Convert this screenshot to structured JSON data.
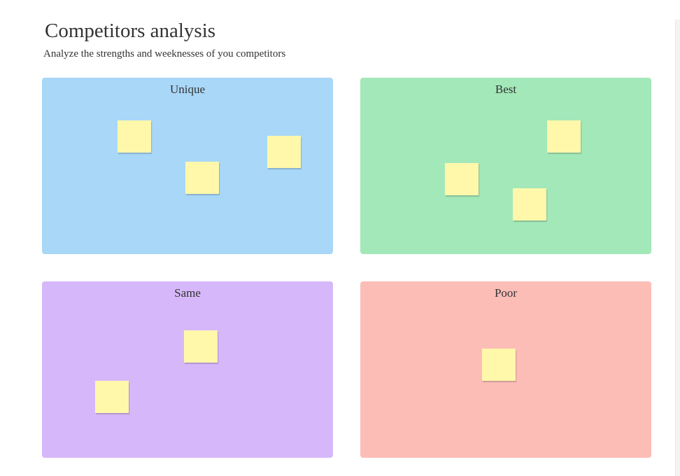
{
  "header": {
    "title": "Competitors analysis",
    "subtitle": "Analyze the strengths and weeknesses of you competitors"
  },
  "quadrants": [
    {
      "label": "Unique"
    },
    {
      "label": "Best"
    },
    {
      "label": "Same"
    },
    {
      "label": "Poor"
    }
  ]
}
